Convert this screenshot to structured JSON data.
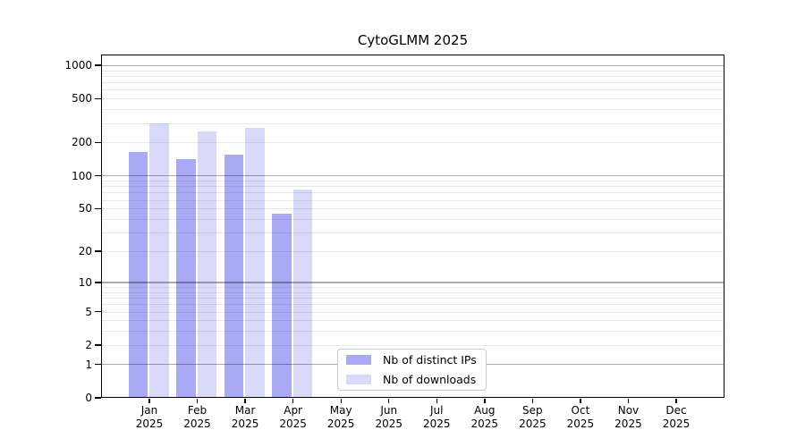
{
  "chart_data": {
    "type": "bar",
    "title": "CytoGLMM 2025",
    "categories": [
      "Jan",
      "Feb",
      "Mar",
      "Apr",
      "May",
      "Jun",
      "Jul",
      "Aug",
      "Sep",
      "Oct",
      "Nov",
      "Dec"
    ],
    "tick_year": "2025",
    "series": [
      {
        "name": "Nb of distinct IPs",
        "color": "#a9a9f4",
        "values": [
          163,
          142,
          155,
          45,
          0,
          0,
          0,
          0,
          0,
          0,
          0,
          0
        ]
      },
      {
        "name": "Nb of downloads",
        "color": "#d9d9f9",
        "values": [
          300,
          254,
          270,
          75,
          0,
          0,
          0,
          0,
          0,
          0,
          0,
          0
        ]
      }
    ],
    "yscale": "log1p",
    "ylim": [
      0,
      1240
    ],
    "yticks": [
      1000,
      500,
      200,
      100,
      50,
      20,
      10,
      5,
      2,
      1,
      0
    ],
    "ytick_labels": [
      "1000",
      "500",
      "200",
      "100",
      "50",
      "20",
      "10",
      "5",
      "2",
      "1",
      "0"
    ],
    "major_gridlines": [
      1,
      10,
      100,
      1000
    ],
    "minor_gridlines": [
      2,
      3,
      4,
      5,
      6,
      7,
      8,
      9,
      20,
      30,
      40,
      50,
      60,
      70,
      80,
      90,
      200,
      300,
      400,
      500,
      600,
      700,
      800,
      900
    ],
    "grid": "on",
    "legend_position": "lower center",
    "colors": {
      "major_grid": "rgba(0,0,0,0.33)",
      "minor_grid": "rgba(0,0,0,0.085)",
      "axis": "#000000",
      "background": "#ffffff"
    }
  }
}
